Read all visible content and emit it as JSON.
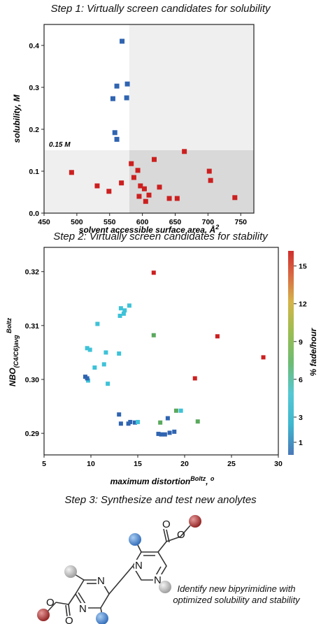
{
  "step1": {
    "title": "Step 1: Virtually screen candidates for solubility",
    "threshold_label": "0.15 M"
  },
  "step2": {
    "title": "Step 2: Virtually screen candidates for stability"
  },
  "step3": {
    "title": "Step 3: Synthesize and test new anolytes",
    "caption_line1": "Identify new bipyrimidine with",
    "caption_line2": "optimized solubility and stability"
  },
  "molecule": {
    "atom_labels": [
      "N",
      "N",
      "N",
      "N",
      "O",
      "O",
      "O",
      "O"
    ],
    "colors": {
      "ring_substituent": "#3a7dc8",
      "ester": "#a83030",
      "methyl": "#b8b8b8"
    }
  },
  "chart_data": [
    {
      "type": "scatter",
      "xlabel": "solvent accessible surface area, Å²",
      "ylabel": "solubility, M",
      "xlim": [
        450,
        770
      ],
      "ylim": [
        0,
        0.45
      ],
      "xticks": [
        450,
        500,
        550,
        600,
        650,
        700,
        750
      ],
      "yticks": [
        0.0,
        0.1,
        0.2,
        0.3,
        0.4
      ],
      "threshold_x": 580,
      "threshold_y": 0.15,
      "series": [
        {
          "color": "#2f64b1",
          "points": [
            [
              569,
              0.41
            ],
            [
              577,
              0.308
            ],
            [
              561,
              0.303
            ],
            [
              576,
              0.275
            ],
            [
              555,
              0.273
            ],
            [
              558,
              0.192
            ],
            [
              561,
              0.176
            ]
          ]
        },
        {
          "color": "#cc1f1f",
          "points": [
            [
              492,
              0.097
            ],
            [
              531,
              0.065
            ],
            [
              549,
              0.052
            ],
            [
              568,
              0.072
            ],
            [
              583,
              0.118
            ],
            [
              587,
              0.085
            ],
            [
              593,
              0.102
            ],
            [
              595,
              0.04
            ],
            [
              597,
              0.065
            ],
            [
              603,
              0.058
            ],
            [
              605,
              0.028
            ],
            [
              610,
              0.043
            ],
            [
              618,
              0.128
            ],
            [
              626,
              0.062
            ],
            [
              641,
              0.035
            ],
            [
              653,
              0.035
            ],
            [
              664,
              0.147
            ],
            [
              702,
              0.1
            ],
            [
              704,
              0.078
            ],
            [
              741,
              0.037
            ]
          ]
        }
      ]
    },
    {
      "type": "scatter",
      "xlabel": "maximum distortionBoltz, o",
      "ylabel": "NBO(C4/C6)avg Boltz",
      "xlim": [
        5,
        30
      ],
      "ylim": [
        0.286,
        0.3245
      ],
      "xticks": [
        5,
        10,
        15,
        20,
        25,
        30
      ],
      "yticks": [
        0.29,
        0.3,
        0.31,
        0.32
      ],
      "colorbar": {
        "label": "% fade/hour",
        "ticks": [
          1,
          3,
          6,
          9,
          12,
          15
        ],
        "colors": [
          "#4a78b8",
          "#3fb7cf",
          "#56c8d4",
          "#6dbb74",
          "#9bbd52",
          "#d5b44a",
          "#d96a43",
          "#cf2f2f"
        ]
      },
      "points": [
        [
          16.7,
          0.3198,
          "#cc1f1f"
        ],
        [
          23.5,
          0.308,
          "#cc1f1f"
        ],
        [
          28.4,
          0.3041,
          "#cc1f1f"
        ],
        [
          21.1,
          0.3002,
          "#cc1f1f"
        ],
        [
          16.7,
          0.3082,
          "#5ba95e"
        ],
        [
          21.4,
          0.2922,
          "#5ba95e"
        ],
        [
          17.4,
          0.292,
          "#5ba95e"
        ],
        [
          19.1,
          0.2942,
          "#5ba95e"
        ],
        [
          14.1,
          0.3137,
          "#3ec2d8"
        ],
        [
          13.2,
          0.3132,
          "#3ec2d8"
        ],
        [
          13.6,
          0.3128,
          "#3ec2d8"
        ],
        [
          13.1,
          0.3118,
          "#3ec2d8"
        ],
        [
          13.5,
          0.3122,
          "#3ec2d8"
        ],
        [
          10.7,
          0.3103,
          "#3ec2d8"
        ],
        [
          11.6,
          0.305,
          "#3ec2d8"
        ],
        [
          13.0,
          0.3048,
          "#3ec2d8"
        ],
        [
          9.6,
          0.3058,
          "#3ec2d8"
        ],
        [
          9.9,
          0.3055,
          "#3ec2d8"
        ],
        [
          11.4,
          0.3028,
          "#3ec2d8"
        ],
        [
          10.4,
          0.3022,
          "#3ec2d8"
        ],
        [
          11.8,
          0.2992,
          "#3ec2d8"
        ],
        [
          9.7,
          0.2998,
          "#3ec2d8"
        ],
        [
          9.4,
          0.3005,
          "#2f64b1"
        ],
        [
          9.6,
          0.3002,
          "#2f64b1"
        ],
        [
          13.0,
          0.2935,
          "#2f64b1"
        ],
        [
          13.2,
          0.2918,
          "#2f64b1"
        ],
        [
          14.0,
          0.2918,
          "#2f64b1"
        ],
        [
          14.2,
          0.2921,
          "#2f64b1"
        ],
        [
          14.7,
          0.292,
          "#2f64b1"
        ],
        [
          15.0,
          0.2921,
          "#3ec2d8"
        ],
        [
          17.5,
          0.2898,
          "#2f64b1"
        ],
        [
          17.9,
          0.2898,
          "#2f64b1"
        ],
        [
          18.2,
          0.2928,
          "#2f64b1"
        ],
        [
          18.4,
          0.2901,
          "#2f64b1"
        ],
        [
          18.9,
          0.2903,
          "#2f64b1"
        ],
        [
          19.6,
          0.2942,
          "#3ec2d8"
        ],
        [
          17.2,
          0.2899,
          "#2f64b1"
        ]
      ]
    }
  ]
}
